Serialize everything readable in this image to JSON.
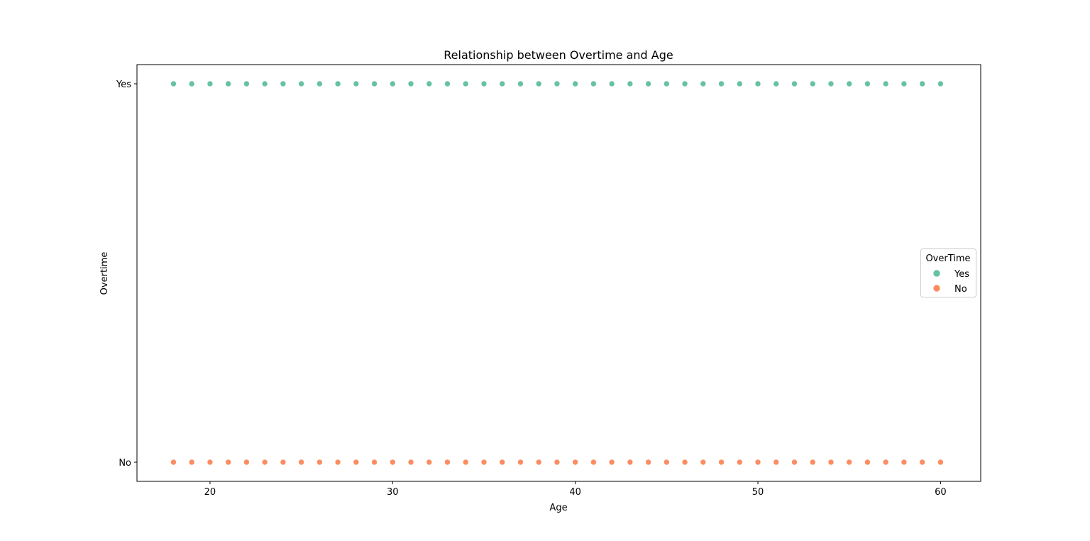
{
  "chart_data": {
    "type": "scatter",
    "title": "Relationship between Overtime and Age",
    "xlabel": "Age",
    "ylabel": "Overtime",
    "xlim": [
      16,
      62.2
    ],
    "x_ticks": [
      20,
      30,
      40,
      50,
      60
    ],
    "y_categories": [
      "No",
      "Yes"
    ],
    "legend": {
      "title": "OverTime",
      "position": "center-right"
    },
    "grid": false,
    "series": [
      {
        "name": "Yes",
        "color": "#66c2a5",
        "y": "Yes",
        "x": [
          18,
          19,
          20,
          21,
          22,
          23,
          24,
          25,
          26,
          27,
          28,
          29,
          30,
          31,
          32,
          33,
          34,
          35,
          36,
          37,
          38,
          39,
          40,
          41,
          42,
          43,
          44,
          45,
          46,
          47,
          48,
          49,
          50,
          51,
          52,
          53,
          54,
          55,
          56,
          57,
          58,
          59,
          60
        ]
      },
      {
        "name": "No",
        "color": "#fc8d62",
        "y": "No",
        "x": [
          18,
          19,
          20,
          21,
          22,
          23,
          24,
          25,
          26,
          27,
          28,
          29,
          30,
          31,
          32,
          33,
          34,
          35,
          36,
          37,
          38,
          39,
          40,
          41,
          42,
          43,
          44,
          45,
          46,
          47,
          48,
          49,
          50,
          51,
          52,
          53,
          54,
          55,
          56,
          57,
          58,
          59,
          60
        ]
      }
    ]
  }
}
